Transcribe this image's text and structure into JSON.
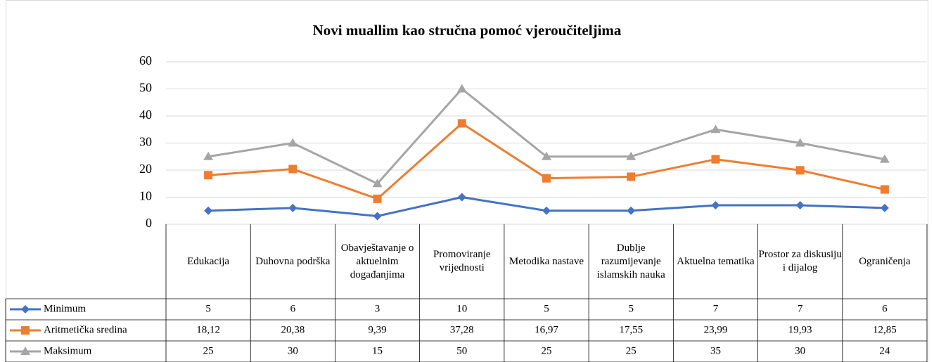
{
  "chart_data": {
    "type": "line",
    "title": "Novi muallim kao stručna pomoć vjeroučiteljima",
    "categories": [
      "Edukacija",
      "Duhovna podrška",
      "Obavještavanje o aktuelnim događanjima",
      "Promoviranje vrijednosti",
      "Metodika nastave",
      "Dublje razumijevanje islamskih nauka",
      "Aktuelna tematika",
      "Prostor za diskusiju i dijalog",
      "Ograničenja"
    ],
    "series": [
      {
        "name": "Minimum",
        "color": "#4472c4",
        "marker": "diamond",
        "values": [
          5,
          6,
          3,
          10,
          5,
          5,
          7,
          7,
          6
        ]
      },
      {
        "name": "Aritmetička sredina",
        "color": "#ed7d31",
        "marker": "square",
        "values": [
          18.12,
          20.38,
          9.39,
          37.28,
          16.97,
          17.55,
          23.99,
          19.93,
          12.85
        ],
        "value_labels": [
          "18,12",
          "20,38",
          "9,39",
          "37,28",
          "16,97",
          "17,55",
          "23,99",
          "19,93",
          "12,85"
        ]
      },
      {
        "name": "Maksimum",
        "color": "#a5a5a5",
        "marker": "triangle",
        "values": [
          25,
          30,
          15,
          50,
          25,
          25,
          35,
          30,
          24
        ]
      }
    ],
    "ylim": [
      0,
      60
    ],
    "yticks": [
      0,
      10,
      20,
      30,
      40,
      50,
      60
    ],
    "grid": true,
    "data_table": true
  }
}
